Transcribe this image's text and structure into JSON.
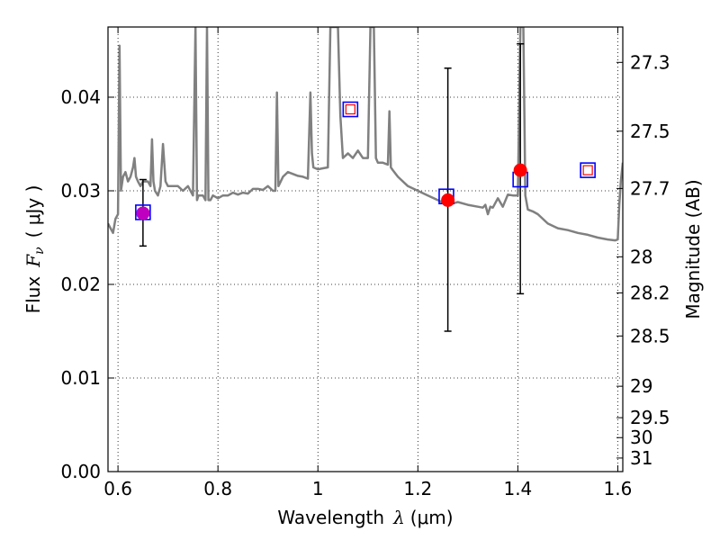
{
  "chart_data": {
    "type": "scatter",
    "xlabel": "Wavelength  λ (μm)",
    "xlabel_text": "Wavelength",
    "xlabel_sym": "λ",
    "xlabel_unit": "(μm)",
    "ylabel": "Flux  Fν  ( μJy )",
    "ylabel_text": "Flux",
    "ylabel_sym": "F",
    "ylabel_sub": "ν",
    "ylabel_unit": "( μJy )",
    "y2label": "Magnitude (AB)",
    "xlim": [
      0.58,
      1.61
    ],
    "ylim": [
      0.0,
      0.0475
    ],
    "grid": true,
    "grid_style": "dotted",
    "x_ticks": [
      {
        "value": 0.6,
        "label": "0.6"
      },
      {
        "value": 0.8,
        "label": "0.8"
      },
      {
        "value": 1.0,
        "label": "1"
      },
      {
        "value": 1.2,
        "label": "1.2"
      },
      {
        "value": 1.4,
        "label": "1.4"
      },
      {
        "value": 1.6,
        "label": "1.6"
      }
    ],
    "y_ticks": [
      {
        "value": 0.0,
        "label": "0.00"
      },
      {
        "value": 0.01,
        "label": "0.01"
      },
      {
        "value": 0.02,
        "label": "0.02"
      },
      {
        "value": 0.03,
        "label": "0.03"
      },
      {
        "value": 0.04,
        "label": "0.04"
      }
    ],
    "magnitude_ticks": [
      {
        "label": "27.3",
        "flux": 0.04372
      },
      {
        "label": "27.5",
        "flux": 0.03637
      },
      {
        "label": "27.7",
        "flux": 0.03025
      },
      {
        "label": "28",
        "flux": 0.02295
      },
      {
        "label": "28.2",
        "flux": 0.01909
      },
      {
        "label": "28.5",
        "flux": 0.01449
      },
      {
        "label": "29",
        "flux": 0.00912
      },
      {
        "label": "29.5",
        "flux": 0.00576
      },
      {
        "label": "30",
        "flux": 0.00363
      },
      {
        "label": "31",
        "flux": 0.00145
      }
    ],
    "model_spectrum": {
      "color": "#808080",
      "x": [
        0.58,
        0.585,
        0.59,
        0.595,
        0.6,
        0.603,
        0.606,
        0.61,
        0.615,
        0.62,
        0.625,
        0.63,
        0.633,
        0.636,
        0.64,
        0.645,
        0.65,
        0.66,
        0.665,
        0.668,
        0.671,
        0.674,
        0.68,
        0.685,
        0.69,
        0.695,
        0.7,
        0.71,
        0.72,
        0.73,
        0.74,
        0.75,
        0.755,
        0.758,
        0.761,
        0.765,
        0.77,
        0.775,
        0.778,
        0.781,
        0.785,
        0.79,
        0.8,
        0.81,
        0.82,
        0.83,
        0.84,
        0.85,
        0.86,
        0.87,
        0.88,
        0.89,
        0.9,
        0.91,
        0.915,
        0.918,
        0.921,
        0.93,
        0.94,
        0.95,
        0.96,
        0.97,
        0.98,
        0.985,
        0.988,
        0.991,
        1.0,
        1.01,
        1.02,
        1.025,
        1.028,
        1.032,
        1.036,
        1.04,
        1.045,
        1.05,
        1.06,
        1.07,
        1.08,
        1.09,
        1.1,
        1.105,
        1.108,
        1.112,
        1.116,
        1.12,
        1.13,
        1.14,
        1.143,
        1.146,
        1.15,
        1.16,
        1.18,
        1.2,
        1.22,
        1.24,
        1.26,
        1.28,
        1.3,
        1.32,
        1.33,
        1.335,
        1.34,
        1.345,
        1.35,
        1.36,
        1.37,
        1.38,
        1.39,
        1.4,
        1.405,
        1.408,
        1.411,
        1.415,
        1.42,
        1.43,
        1.44,
        1.46,
        1.48,
        1.5,
        1.52,
        1.54,
        1.56,
        1.58,
        1.595,
        1.6,
        1.603,
        1.606,
        1.61
      ],
      "y": [
        0.0265,
        0.026,
        0.0255,
        0.027,
        0.0275,
        0.0455,
        0.03,
        0.0315,
        0.032,
        0.031,
        0.0315,
        0.0325,
        0.0335,
        0.0315,
        0.031,
        0.0305,
        0.031,
        0.031,
        0.0305,
        0.0355,
        0.031,
        0.03,
        0.0295,
        0.0305,
        0.035,
        0.031,
        0.0305,
        0.0305,
        0.0305,
        0.03,
        0.0305,
        0.0295,
        0.0475,
        0.029,
        0.0295,
        0.0295,
        0.0295,
        0.029,
        0.0475,
        0.029,
        0.029,
        0.0295,
        0.0292,
        0.0295,
        0.0295,
        0.0298,
        0.0296,
        0.0298,
        0.0297,
        0.0302,
        0.0302,
        0.0301,
        0.0305,
        0.03,
        0.03,
        0.0405,
        0.0305,
        0.0315,
        0.032,
        0.0318,
        0.0316,
        0.0315,
        0.0313,
        0.0405,
        0.034,
        0.0325,
        0.0323,
        0.0324,
        0.0325,
        0.0475,
        0.0475,
        0.0475,
        0.0475,
        0.0475,
        0.038,
        0.0335,
        0.034,
        0.0335,
        0.0343,
        0.0335,
        0.0335,
        0.0475,
        0.0475,
        0.0475,
        0.0335,
        0.033,
        0.033,
        0.0328,
        0.0385,
        0.0325,
        0.0322,
        0.0315,
        0.0305,
        0.03,
        0.0295,
        0.029,
        0.0285,
        0.0288,
        0.0285,
        0.0283,
        0.0282,
        0.0285,
        0.0275,
        0.0283,
        0.0282,
        0.0292,
        0.0283,
        0.0296,
        0.0295,
        0.0295,
        0.0475,
        0.0475,
        0.0475,
        0.0295,
        0.028,
        0.0278,
        0.0275,
        0.0265,
        0.026,
        0.0258,
        0.0255,
        0.0253,
        0.025,
        0.0248,
        0.0247,
        0.0248,
        0.0285,
        0.031,
        0.033
      ]
    },
    "predicted_points": {
      "marker": "square",
      "edge_color": "#0000ff",
      "points": [
        {
          "x": 0.65,
          "y": 0.0277
        },
        {
          "x": 1.065,
          "y": 0.0387
        },
        {
          "x": 1.257,
          "y": 0.0294
        },
        {
          "x": 1.405,
          "y": 0.0312
        },
        {
          "x": 1.54,
          "y": 0.0322
        }
      ]
    },
    "inner_marks": {
      "marker": "square",
      "edge_color": "#ff0000",
      "points": [
        {
          "x": 1.065,
          "y": 0.0387
        },
        {
          "x": 1.54,
          "y": 0.0322
        }
      ]
    },
    "observed_points": {
      "marker": "circle",
      "color": "#ff0000",
      "points": [
        {
          "x": 0.65,
          "y": 0.0276,
          "err_low": 0.0241,
          "err_high": 0.0312,
          "color": "#c000c0"
        },
        {
          "x": 1.26,
          "y": 0.029,
          "err_low": 0.015,
          "err_high": 0.0431
        },
        {
          "x": 1.405,
          "y": 0.0322,
          "err_low": 0.019,
          "err_high": 0.0457
        }
      ]
    }
  }
}
